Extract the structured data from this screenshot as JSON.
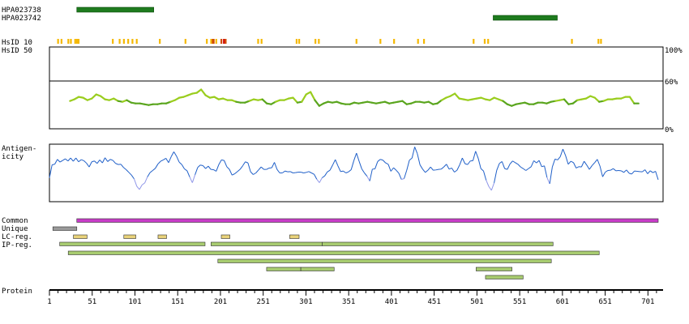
{
  "chart_data": {
    "type": "protein-feature-map",
    "antibodies": [
      {
        "name": "HPA023738",
        "start": 33,
        "end": 123,
        "color": "#1e7b1e"
      },
      {
        "name": "HPA023742",
        "start": 520,
        "end": 595,
        "color": "#1e7b1e"
      }
    ],
    "hsid_labels": [
      "HsID 10",
      "HsID 50"
    ],
    "hsid10_marks": [
      {
        "pos": 11,
        "color": "#f5b800"
      },
      {
        "pos": 15,
        "color": "#f5b800"
      },
      {
        "pos": 23,
        "color": "#f5b800"
      },
      {
        "pos": 26,
        "color": "#f5b800"
      },
      {
        "pos": 31,
        "color": "#f5b800"
      },
      {
        "pos": 33,
        "color": "#f5b800"
      },
      {
        "pos": 35,
        "color": "#f5b800"
      },
      {
        "pos": 75,
        "color": "#f5b800"
      },
      {
        "pos": 83,
        "color": "#f5b800"
      },
      {
        "pos": 88,
        "color": "#f5b800"
      },
      {
        "pos": 93,
        "color": "#f5b800"
      },
      {
        "pos": 98,
        "color": "#f5b800"
      },
      {
        "pos": 103,
        "color": "#f5b800"
      },
      {
        "pos": 130,
        "color": "#f5b800"
      },
      {
        "pos": 160,
        "color": "#f5b800"
      },
      {
        "pos": 185,
        "color": "#f5b800"
      },
      {
        "pos": 190,
        "color": "#f5b800"
      },
      {
        "pos": 192,
        "color": "#d24a00"
      },
      {
        "pos": 193,
        "color": "#d24a00"
      },
      {
        "pos": 196,
        "color": "#f5b800"
      },
      {
        "pos": 202,
        "color": "#d24a00"
      },
      {
        "pos": 205,
        "color": "#d00000"
      },
      {
        "pos": 207,
        "color": "#d24a00"
      },
      {
        "pos": 245,
        "color": "#f5b800"
      },
      {
        "pos": 249,
        "color": "#f5b800"
      },
      {
        "pos": 290,
        "color": "#f5b800"
      },
      {
        "pos": 293,
        "color": "#f5b800"
      },
      {
        "pos": 312,
        "color": "#f5b800"
      },
      {
        "pos": 316,
        "color": "#f5b800"
      },
      {
        "pos": 360,
        "color": "#f5b800"
      },
      {
        "pos": 388,
        "color": "#f5b800"
      },
      {
        "pos": 404,
        "color": "#f5b800"
      },
      {
        "pos": 432,
        "color": "#f5b800"
      },
      {
        "pos": 439,
        "color": "#f5b800"
      },
      {
        "pos": 497,
        "color": "#f5b800"
      },
      {
        "pos": 510,
        "color": "#f5b800"
      },
      {
        "pos": 514,
        "color": "#f5b800"
      },
      {
        "pos": 612,
        "color": "#f5b800"
      },
      {
        "pos": 643,
        "color": "#f5b800"
      },
      {
        "pos": 646,
        "color": "#f5b800"
      }
    ],
    "identity_plot": {
      "y_ticks": [
        "100%",
        "60%",
        "0%"
      ],
      "ylim": [
        0,
        100
      ],
      "threshold": 60,
      "x_start": 25,
      "x_end": 690,
      "color_high": "#9acd1e",
      "color_low": "#5aa51e",
      "values": [
        34,
        36,
        39,
        38,
        35,
        37,
        42,
        40,
        36,
        35,
        37,
        34,
        33,
        35,
        32,
        31,
        31,
        30,
        29,
        30,
        30,
        31,
        31,
        33,
        35,
        38,
        39,
        41,
        43,
        44,
        48,
        41,
        38,
        39,
        36,
        37,
        35,
        35,
        33,
        32,
        32,
        34,
        36,
        35,
        36,
        31,
        30,
        33,
        35,
        35,
        37,
        38,
        32,
        33,
        42,
        45,
        35,
        28,
        31,
        33,
        32,
        33,
        31,
        30,
        30,
        32,
        31,
        32,
        33,
        32,
        31,
        32,
        33,
        31,
        32,
        33,
        34,
        30,
        31,
        33,
        33,
        32,
        33,
        30,
        31,
        35,
        38,
        40,
        43,
        37,
        36,
        35,
        36,
        37,
        38,
        36,
        35,
        38,
        36,
        34,
        30,
        28,
        30,
        31,
        32,
        30,
        30,
        32,
        32,
        31,
        33,
        34,
        35,
        36,
        30,
        31,
        35,
        36,
        37,
        40,
        38,
        33,
        34,
        36,
        36,
        37,
        37,
        39,
        39,
        31,
        31
      ]
    },
    "antigenicity_plot": {
      "title_lines": [
        "Antigen-",
        "icity"
      ],
      "ylim": [
        -1,
        1
      ],
      "color_pos": "#1f5fc8",
      "color_neg": "#8f96e8",
      "values": [
        -0.18,
        0.3,
        0.32,
        0.5,
        0.4,
        0.46,
        0.52,
        0.44,
        0.55,
        0.43,
        0.55,
        0.41,
        0.49,
        0.45,
        0.36,
        0.22,
        0.41,
        0.44,
        0.35,
        0.48,
        0.37,
        0.56,
        0.42,
        0.5,
        0.46,
        0.35,
        0.31,
        0.32,
        0.2,
        0.12,
        0.02,
        -0.08,
        -0.22,
        -0.49,
        -0.61,
        -0.44,
        -0.37,
        -0.15,
        0.01,
        0.09,
        0.17,
        0.33,
        0.43,
        0.48,
        0.54,
        0.38,
        0.6,
        0.78,
        0.62,
        0.4,
        0.31,
        0.15,
        0.08,
        -0.15,
        -0.36,
        -0.07,
        0.2,
        0.29,
        0.27,
        0.16,
        0.25,
        0.13,
        0.12,
        0.06,
        0.31,
        0.48,
        0.46,
        0.23,
        0.13,
        -0.08,
        -0.03,
        0.05,
        0.13,
        0.26,
        0.41,
        0.37,
        0.04,
        -0.06,
        0.0,
        0.11,
        0.22,
        0.13,
        0.13,
        0.18,
        0.19,
        0.39,
        0.13,
        0.0,
        0.0,
        0.07,
        0.04,
        0.05,
        0.0,
        0.01,
        0.03,
        0.03,
        0.0,
        0.02,
        0.05,
        0.0,
        -0.05,
        -0.23,
        -0.36,
        -0.18,
        -0.11,
        0.04,
        0.1,
        0.29,
        0.49,
        0.26,
        0.05,
        0.07,
        0.0,
        0.04,
        0.12,
        0.45,
        0.73,
        0.43,
        0.15,
        0.0,
        -0.12,
        -0.3,
        0.14,
        0.15,
        0.42,
        0.5,
        0.47,
        0.37,
        0.32,
        0.06,
        0.19,
        0.1,
        -0.01,
        -0.24,
        -0.21,
        0.1,
        0.47,
        0.55,
        0.96,
        0.71,
        0.3,
        0.14,
        0.02,
        0.1,
        0.22,
        0.1,
        0.11,
        0.13,
        0.14,
        0.22,
        0.32,
        0.14,
        0.18,
        0.03,
        0.1,
        0.3,
        0.55,
        0.34,
        0.31,
        0.44,
        0.45,
        0.8,
        0.54,
        0.16,
        0.07,
        -0.27,
        -0.5,
        -0.64,
        -0.37,
        0.1,
        0.35,
        0.42,
        0.16,
        0.13,
        0.33,
        0.44,
        0.38,
        0.32,
        0.22,
        0.16,
        0.09,
        0.16,
        0.23,
        0.45,
        0.37,
        0.46,
        0.23,
        0.26,
        -0.17,
        -0.4,
        0.22,
        0.51,
        0.48,
        0.6,
        0.88,
        0.64,
        0.32,
        0.43,
        0.38,
        0.18,
        0.23,
        0.22,
        0.43,
        0.29,
        0.13,
        0.27,
        0.38,
        0.5,
        0.25,
        -0.14,
        0.03,
        0.09,
        0.1,
        0.16,
        0.08,
        0.09,
        0.08,
        0.02,
        0.11,
        -0.01,
        -0.04,
        0.07,
        0.06,
        0.05,
        0.04,
        0.12,
        -0.03,
        0.08,
        0.01,
        0.06,
        -0.25
      ]
    },
    "tracks": [
      {
        "label": "Common",
        "segments": [
          {
            "start": 33,
            "end": 713,
            "color": "#c83cc8"
          }
        ]
      },
      {
        "label": "Unique",
        "segments": [
          {
            "start": 5,
            "end": 33,
            "color": "#9a9a9a"
          }
        ]
      },
      {
        "label": "LC-reg.",
        "segments": [
          {
            "start": 29,
            "end": 45,
            "color": "#e8d27a"
          },
          {
            "start": 88,
            "end": 102,
            "color": "#e8d27a"
          },
          {
            "start": 128,
            "end": 138,
            "color": "#e8d27a"
          },
          {
            "start": 202,
            "end": 212,
            "color": "#e8d27a"
          },
          {
            "start": 282,
            "end": 293,
            "color": "#e8d27a"
          }
        ]
      },
      {
        "label": "IP-reg.",
        "segments": [
          {
            "start": 13,
            "end": 183,
            "color": "#a8cc70"
          },
          {
            "start": 190,
            "end": 320,
            "color": "#a8cc70"
          },
          {
            "start": 320,
            "end": 590,
            "color": "#a8cc70"
          }
        ]
      },
      {
        "label": "",
        "segments": [
          {
            "start": 23,
            "end": 644,
            "color": "#a8cc70"
          }
        ]
      },
      {
        "label": "",
        "segments": [
          {
            "start": 198,
            "end": 588,
            "color": "#a8cc70"
          }
        ]
      },
      {
        "label": "",
        "segments": [
          {
            "start": 255,
            "end": 295,
            "color": "#a8cc70"
          },
          {
            "start": 295,
            "end": 334,
            "color": "#a8cc70"
          },
          {
            "start": 500,
            "end": 542,
            "color": "#a8cc70"
          }
        ]
      },
      {
        "label": "",
        "segments": [
          {
            "start": 511,
            "end": 555,
            "color": "#a8cc70"
          }
        ]
      }
    ],
    "protein_axis": {
      "label": "Protein",
      "range": [
        1,
        713
      ],
      "ticks": [
        1,
        51,
        101,
        151,
        201,
        251,
        301,
        351,
        401,
        451,
        501,
        551,
        601,
        651,
        701
      ],
      "tick_labels": [
        "1",
        "51",
        "101",
        "151",
        "201",
        "251",
        "301",
        "351",
        "401",
        "451",
        "501",
        "551",
        "601",
        "651",
        "701"
      ]
    }
  }
}
